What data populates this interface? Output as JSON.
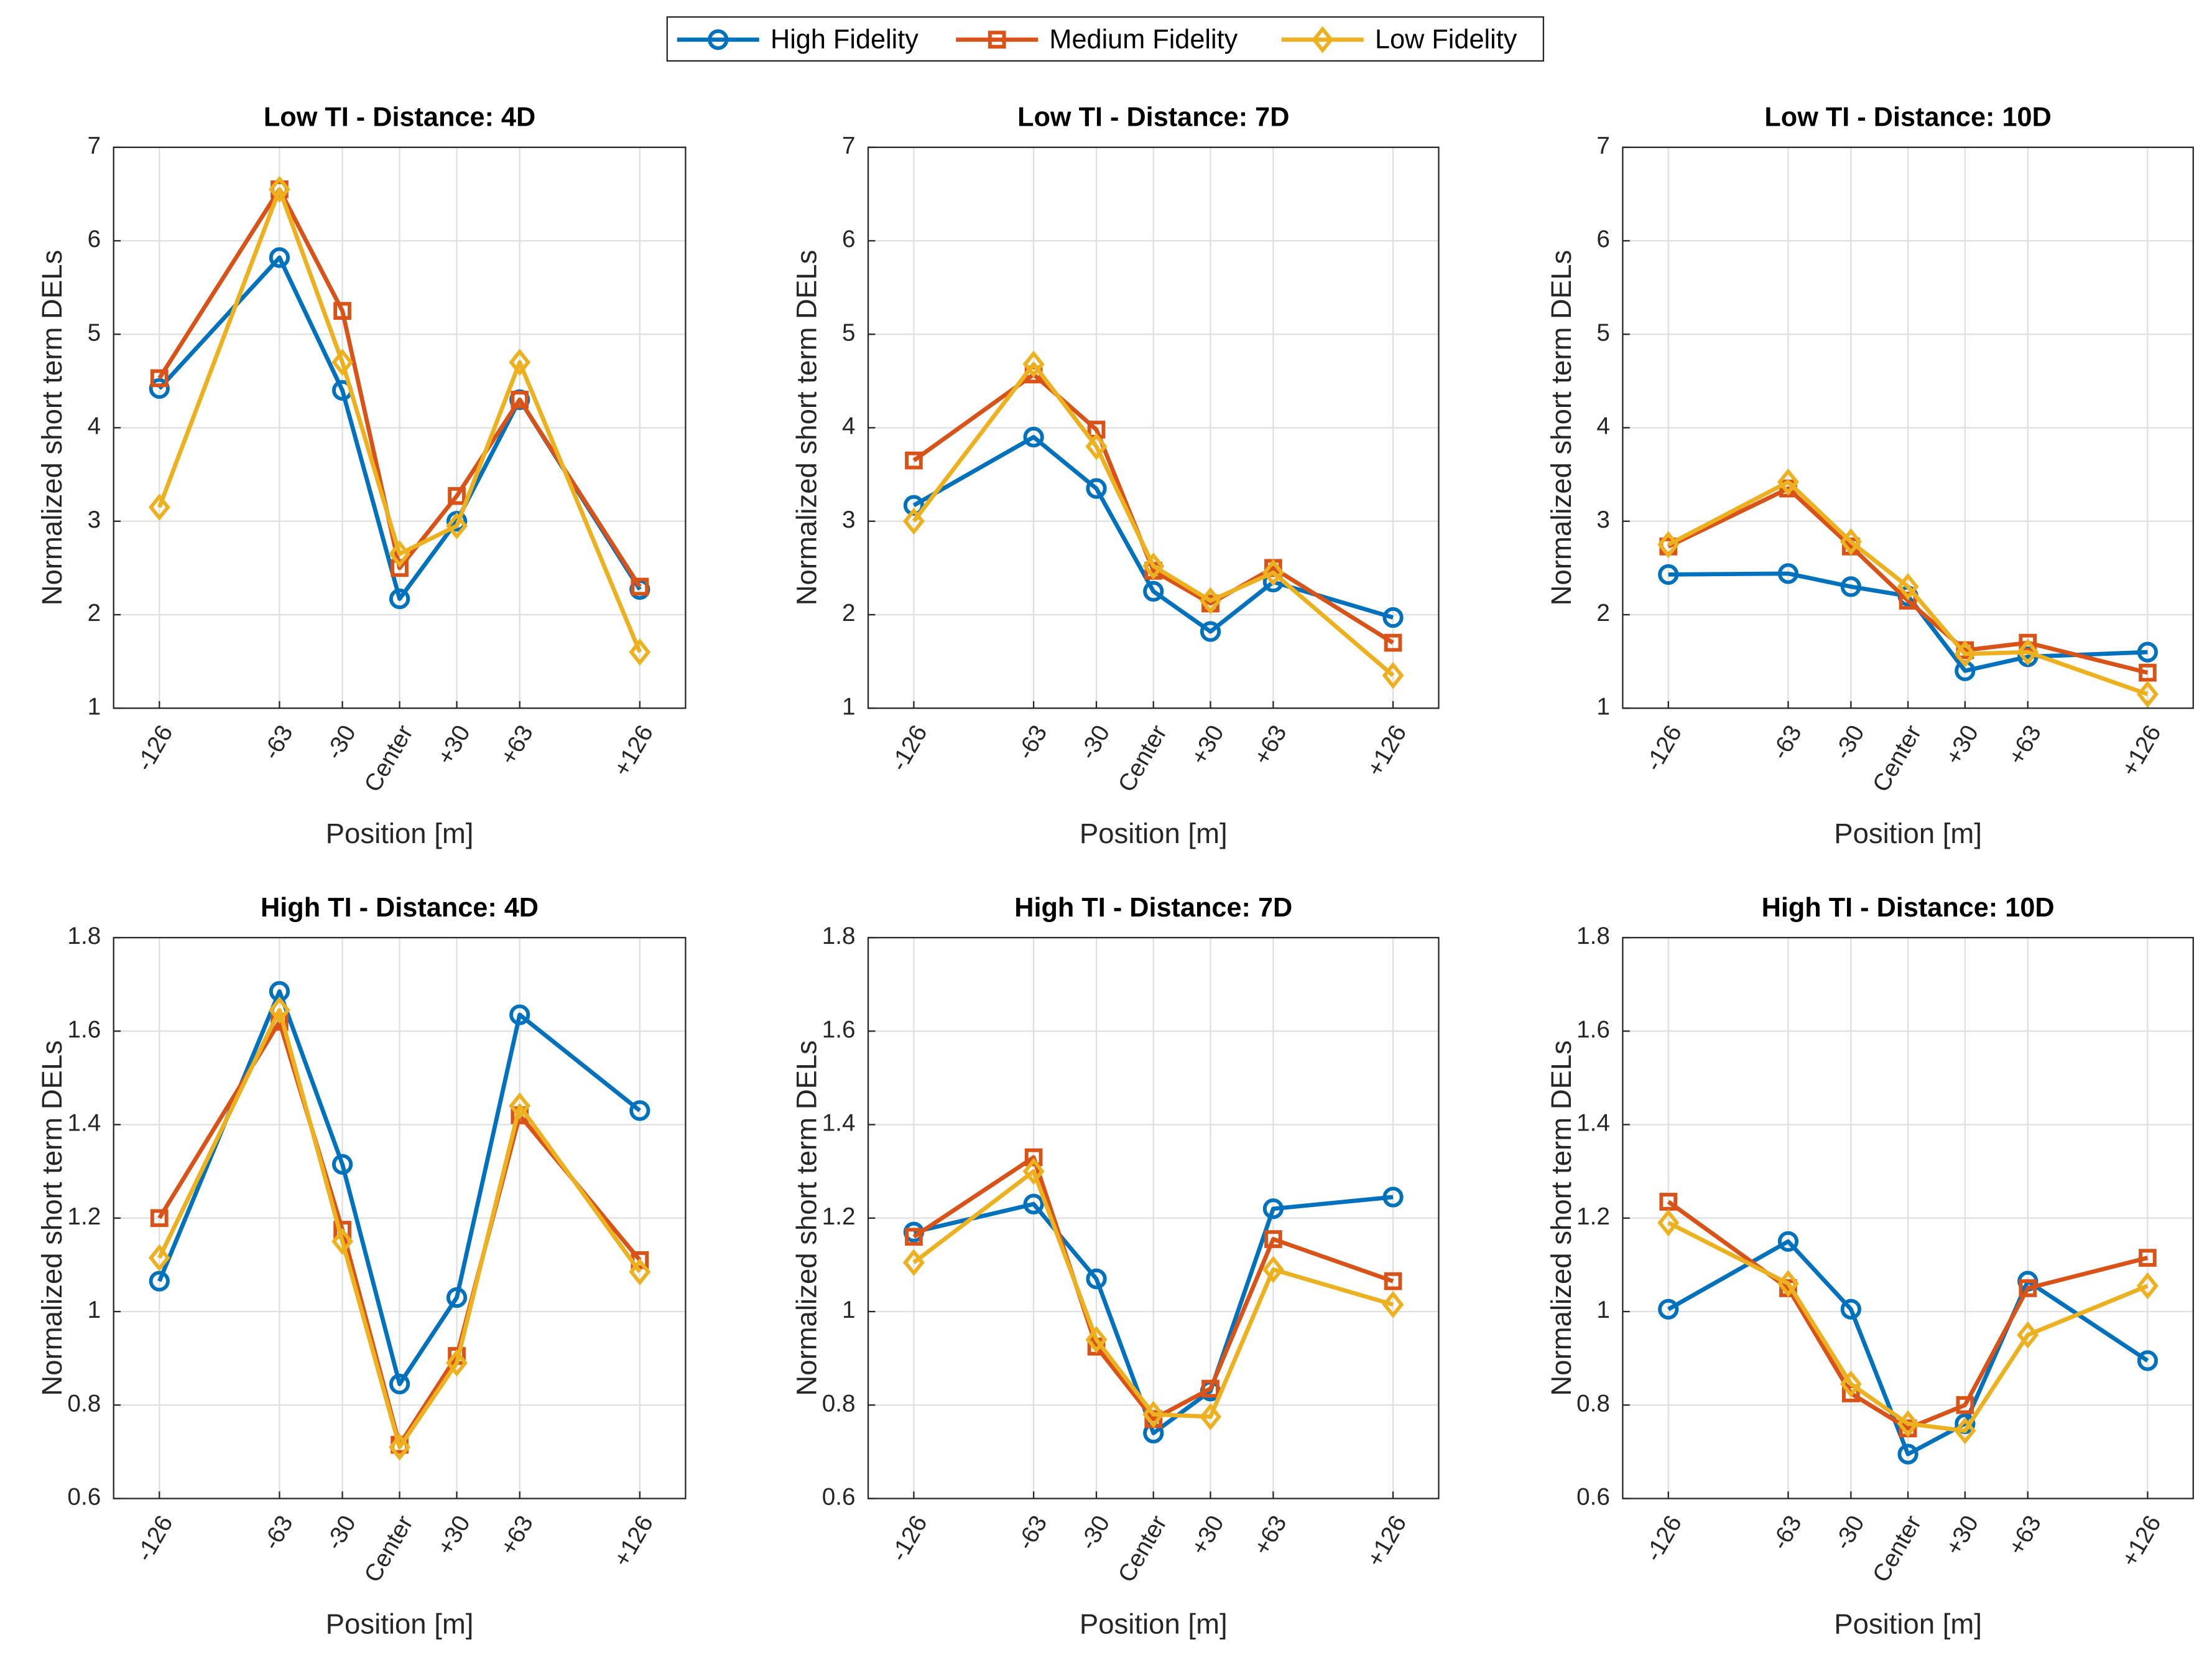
{
  "chart_data": [
    {
      "type": "line",
      "title": "Low TI - Distance: 4D",
      "xlabel": "Position [m]",
      "ylabel": "Normalized short term DELs",
      "x": [
        -126,
        -63,
        -30,
        0,
        30,
        63,
        126
      ],
      "xlim": [
        -150,
        150
      ],
      "xticks": [
        -126,
        -63,
        -30,
        {
          "value": 0,
          "label": "Center"
        },
        {
          "value": 30,
          "label": "+30"
        },
        {
          "value": 63,
          "label": "+63"
        },
        {
          "value": 126,
          "label": "+126"
        }
      ],
      "ylim": [
        1,
        7
      ],
      "yticks": [
        1,
        2,
        3,
        4,
        5,
        6,
        7
      ],
      "grid": true,
      "series": [
        {
          "name": "High Fidelity",
          "color": "#0072bd",
          "marker": "circle",
          "values": [
            4.42,
            5.82,
            4.4,
            2.17,
            3.0,
            4.3,
            2.27
          ]
        },
        {
          "name": "Medium Fidelity",
          "color": "#d95319",
          "marker": "square",
          "values": [
            4.53,
            6.55,
            5.25,
            2.5,
            3.27,
            4.3,
            2.3
          ]
        },
        {
          "name": "Low Fidelity",
          "color": "#edb120",
          "marker": "diamond",
          "values": [
            3.15,
            6.55,
            4.7,
            2.65,
            2.95,
            4.7,
            1.6
          ]
        }
      ]
    },
    {
      "type": "line",
      "title": "Low TI - Distance: 7D",
      "xlabel": "Position [m]",
      "ylabel": "Normalized short term DELs",
      "x": [
        -126,
        -63,
        -30,
        0,
        30,
        63,
        126
      ],
      "xlim": [
        -150,
        150
      ],
      "xticks": [
        -126,
        -63,
        -30,
        {
          "value": 0,
          "label": "Center"
        },
        {
          "value": 30,
          "label": "+30"
        },
        {
          "value": 63,
          "label": "+63"
        },
        {
          "value": 126,
          "label": "+126"
        }
      ],
      "ylim": [
        1,
        7
      ],
      "yticks": [
        1,
        2,
        3,
        4,
        5,
        6,
        7
      ],
      "grid": true,
      "series": [
        {
          "color": "#0072bd",
          "marker": "circle",
          "values": [
            3.17,
            3.9,
            3.35,
            2.25,
            1.82,
            2.35,
            1.97
          ]
        },
        {
          "color": "#d95319",
          "marker": "square",
          "values": [
            3.65,
            4.57,
            3.98,
            2.47,
            2.12,
            2.5,
            1.7
          ]
        },
        {
          "color": "#edb120",
          "marker": "diamond",
          "values": [
            3.0,
            4.68,
            3.8,
            2.52,
            2.15,
            2.45,
            1.35
          ]
        }
      ]
    },
    {
      "type": "line",
      "title": "Low TI - Distance: 10D",
      "xlabel": "Position [m]",
      "ylabel": "Normalized short term DELs",
      "x": [
        -126,
        -63,
        -30,
        0,
        30,
        63,
        126
      ],
      "xlim": [
        -150,
        150
      ],
      "xticks": [
        -126,
        -63,
        -30,
        {
          "value": 0,
          "label": "Center"
        },
        {
          "value": 30,
          "label": "+30"
        },
        {
          "value": 63,
          "label": "+63"
        },
        {
          "value": 126,
          "label": "+126"
        }
      ],
      "ylim": [
        1,
        7
      ],
      "yticks": [
        1,
        2,
        3,
        4,
        5,
        6,
        7
      ],
      "grid": true,
      "series": [
        {
          "color": "#0072bd",
          "marker": "circle",
          "values": [
            2.43,
            2.44,
            2.3,
            2.2,
            1.4,
            1.55,
            1.6
          ]
        },
        {
          "color": "#d95319",
          "marker": "square",
          "values": [
            2.73,
            3.35,
            2.73,
            2.15,
            1.62,
            1.7,
            1.38
          ]
        },
        {
          "color": "#edb120",
          "marker": "diamond",
          "values": [
            2.75,
            3.42,
            2.78,
            2.3,
            1.58,
            1.6,
            1.15
          ]
        }
      ]
    },
    {
      "type": "line",
      "title": "High TI - Distance: 4D",
      "xlabel": "Position [m]",
      "ylabel": "Normalized short term DELs",
      "x": [
        -126,
        -63,
        -30,
        0,
        30,
        63,
        126
      ],
      "xlim": [
        -150,
        150
      ],
      "xticks": [
        -126,
        -63,
        -30,
        {
          "value": 0,
          "label": "Center"
        },
        {
          "value": 30,
          "label": "+30"
        },
        {
          "value": 63,
          "label": "+63"
        },
        {
          "value": 126,
          "label": "+126"
        }
      ],
      "ylim": [
        0.6,
        1.8
      ],
      "yticks": [
        0.6,
        0.8,
        1,
        1.2,
        1.4,
        1.6,
        1.8
      ],
      "grid": true,
      "series": [
        {
          "color": "#0072bd",
          "marker": "circle",
          "values": [
            1.065,
            1.685,
            1.315,
            0.845,
            1.03,
            1.635,
            1.43
          ]
        },
        {
          "color": "#d95319",
          "marker": "square",
          "values": [
            1.2,
            1.62,
            1.175,
            0.715,
            0.905,
            1.42,
            1.11
          ]
        },
        {
          "color": "#edb120",
          "marker": "diamond",
          "values": [
            1.115,
            1.645,
            1.15,
            0.71,
            0.89,
            1.44,
            1.085
          ]
        }
      ]
    },
    {
      "type": "line",
      "title": "High TI - Distance: 7D",
      "xlabel": "Position [m]",
      "ylabel": "Normalized short term DELs",
      "x": [
        -126,
        -63,
        -30,
        0,
        30,
        63,
        126
      ],
      "xlim": [
        -150,
        150
      ],
      "xticks": [
        -126,
        -63,
        -30,
        {
          "value": 0,
          "label": "Center"
        },
        {
          "value": 30,
          "label": "+30"
        },
        {
          "value": 63,
          "label": "+63"
        },
        {
          "value": 126,
          "label": "+126"
        }
      ],
      "ylim": [
        0.6,
        1.8
      ],
      "yticks": [
        0.6,
        0.8,
        1,
        1.2,
        1.4,
        1.6,
        1.8
      ],
      "grid": true,
      "series": [
        {
          "color": "#0072bd",
          "marker": "circle",
          "values": [
            1.17,
            1.23,
            1.07,
            0.74,
            0.83,
            1.22,
            1.245
          ]
        },
        {
          "color": "#d95319",
          "marker": "square",
          "values": [
            1.16,
            1.33,
            0.925,
            0.77,
            0.835,
            1.155,
            1.065
          ]
        },
        {
          "color": "#edb120",
          "marker": "diamond",
          "values": [
            1.105,
            1.3,
            0.94,
            0.78,
            0.775,
            1.09,
            1.015
          ]
        }
      ]
    },
    {
      "type": "line",
      "title": "High TI - Distance: 10D",
      "xlabel": "Position [m]",
      "ylabel": "Normalized short term DELs",
      "x": [
        -126,
        -63,
        -30,
        0,
        30,
        63,
        126
      ],
      "xlim": [
        -150,
        150
      ],
      "xticks": [
        -126,
        -63,
        -30,
        {
          "value": 0,
          "label": "Center"
        },
        {
          "value": 30,
          "label": "+30"
        },
        {
          "value": 63,
          "label": "+63"
        },
        {
          "value": 126,
          "label": "+126"
        }
      ],
      "ylim": [
        0.6,
        1.8
      ],
      "yticks": [
        0.6,
        0.8,
        1,
        1.2,
        1.4,
        1.6,
        1.8
      ],
      "grid": true,
      "series": [
        {
          "color": "#0072bd",
          "marker": "circle",
          "values": [
            1.005,
            1.15,
            1.005,
            0.695,
            0.76,
            1.065,
            0.895
          ]
        },
        {
          "color": "#d95319",
          "marker": "square",
          "values": [
            1.235,
            1.05,
            0.825,
            0.75,
            0.8,
            1.05,
            1.115
          ]
        },
        {
          "color": "#edb120",
          "marker": "diamond",
          "values": [
            1.19,
            1.06,
            0.845,
            0.76,
            0.745,
            0.95,
            1.055
          ]
        }
      ]
    }
  ]
}
